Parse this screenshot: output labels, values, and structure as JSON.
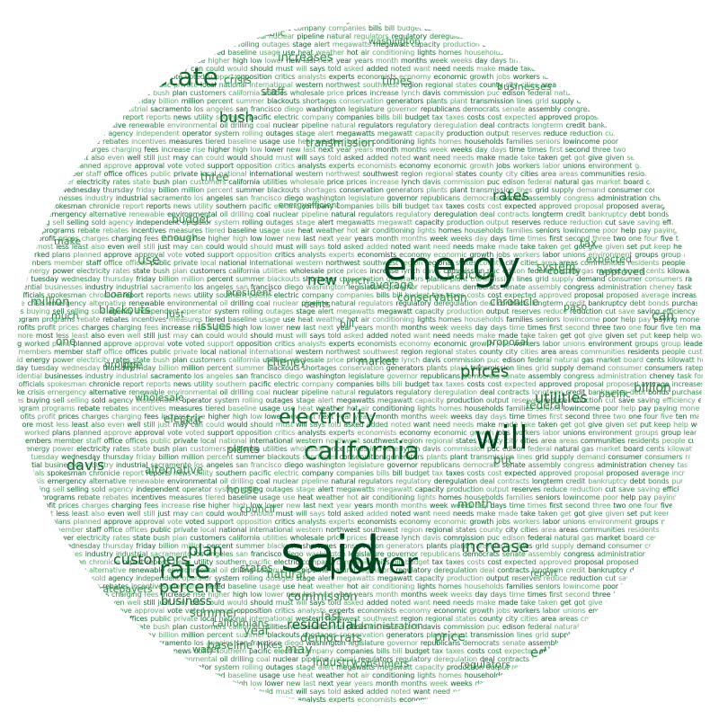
{
  "colors": {
    "dark": "#00461f",
    "mid": "#0f6a2b",
    "light": "#2f8b45",
    "pale": "#5ea96a"
  },
  "cloud": {
    "featured": [
      {
        "name": "word-said",
        "text": "said"
      },
      {
        "name": "word-energy",
        "text": "energy"
      },
      {
        "name": "word-power",
        "text": "power"
      },
      {
        "name": "word-will",
        "text": "will"
      },
      {
        "name": "word-california",
        "text": "california"
      },
      {
        "name": "word-electricity",
        "text": "electricity"
      },
      {
        "name": "word-state",
        "text": "state"
      },
      {
        "name": "word-rate",
        "text": "rate"
      },
      {
        "name": "word-gas",
        "text": "gas"
      },
      {
        "name": "word-customers",
        "text": "customers"
      },
      {
        "name": "word-percent",
        "text": "percent"
      },
      {
        "name": "word-davis",
        "text": "davis"
      },
      {
        "name": "word-increase",
        "text": "increase"
      },
      {
        "name": "word-prices",
        "text": "prices"
      },
      {
        "name": "word-rates",
        "text": "rates"
      },
      {
        "name": "word-new",
        "text": "new"
      },
      {
        "name": "word-plan",
        "text": "plan"
      },
      {
        "name": "word-utilities",
        "text": "utilities"
      },
      {
        "name": "word-bush",
        "text": "bush"
      },
      {
        "name": "word-residential",
        "text": "residential"
      },
      {
        "name": "word-business",
        "text": "business"
      },
      {
        "name": "word-commission",
        "text": "commission"
      },
      {
        "name": "word-price",
        "text": "price"
      },
      {
        "name": "word-summer",
        "text": "summer"
      },
      {
        "name": "word-edison",
        "text": "edison"
      },
      {
        "name": "word-billion",
        "text": "billion"
      },
      {
        "name": "word-million",
        "text": "million"
      },
      {
        "name": "word-increases",
        "text": "increases"
      },
      {
        "name": "word-transmission",
        "text": "transmission"
      },
      {
        "name": "word-democrats",
        "text": "democrats"
      },
      {
        "name": "word-can",
        "text": "can"
      },
      {
        "name": "word-may",
        "text": "may"
      },
      {
        "name": "word-year",
        "text": "year"
      },
      {
        "name": "word-system",
        "text": "system"
      },
      {
        "name": "word-natural",
        "text": "natural"
      },
      {
        "name": "word-states",
        "text": "states"
      },
      {
        "name": "word-industry",
        "text": "industry"
      },
      {
        "name": "word-average",
        "text": "average"
      },
      {
        "name": "word-conservation",
        "text": "conservation"
      },
      {
        "name": "word-baseline",
        "text": "baseline"
      },
      {
        "name": "word-hikes",
        "text": "hikes"
      },
      {
        "name": "word-californians",
        "text": "californians"
      },
      {
        "name": "word-use",
        "text": "use"
      },
      {
        "name": "word-last",
        "text": "last"
      },
      {
        "name": "word-blackouts",
        "text": "blackouts"
      },
      {
        "name": "word-crisis",
        "text": "crisis"
      },
      {
        "name": "word-staff",
        "text": "staff"
      },
      {
        "name": "word-cheney",
        "text": "cheney"
      },
      {
        "name": "word-issues",
        "text": "issues"
      },
      {
        "name": "word-alternative",
        "text": "alternative"
      },
      {
        "name": "word-electric",
        "text": "electric"
      },
      {
        "name": "word-plants",
        "text": "plants"
      },
      {
        "name": "word-house",
        "text": "house"
      },
      {
        "name": "word-council",
        "text": "council"
      },
      {
        "name": "word-budget",
        "text": "budget"
      },
      {
        "name": "word-chronicle",
        "text": "chronicle"
      },
      {
        "name": "word-francisco",
        "text": "francisco"
      },
      {
        "name": "word-federal",
        "text": "federal"
      },
      {
        "name": "word-month",
        "text": "month"
      },
      {
        "name": "word-puc",
        "text": "puc"
      },
      {
        "name": "word-market",
        "text": "market"
      },
      {
        "name": "word-pge",
        "text": "pge"
      },
      {
        "name": "word-three",
        "text": "three"
      },
      {
        "name": "word-times",
        "text": "times"
      },
      {
        "name": "word-businesses",
        "text": "businesses"
      },
      {
        "name": "word-ratepayers",
        "text": "ratepayers"
      },
      {
        "name": "word-consumers",
        "text": "consumers"
      },
      {
        "name": "word-public",
        "text": "public"
      },
      {
        "name": "word-washington",
        "text": "washington"
      },
      {
        "name": "word-tax",
        "text": "tax"
      },
      {
        "name": "word-one",
        "text": "one"
      },
      {
        "name": "word-make",
        "text": "make"
      },
      {
        "name": "word-water",
        "text": "water"
      },
      {
        "name": "word-president",
        "text": "president"
      },
      {
        "name": "word-board",
        "text": "board"
      },
      {
        "name": "word-two",
        "text": "two"
      },
      {
        "name": "word-much",
        "text": "much"
      },
      {
        "name": "word-just",
        "text": "just"
      },
      {
        "name": "word-paso",
        "text": "paso"
      },
      {
        "name": "word-pacific",
        "text": "pacific"
      },
      {
        "name": "word-proposal",
        "text": "proposal"
      },
      {
        "name": "word-groups",
        "text": "groups"
      },
      {
        "name": "word-wholesale",
        "text": "wholesale"
      },
      {
        "name": "word-lynch",
        "text": "lynch"
      },
      {
        "name": "word-county",
        "text": "county"
      },
      {
        "name": "word-expected",
        "text": "expected"
      },
      {
        "name": "word-approved",
        "text": "approved"
      },
      {
        "name": "word-cents",
        "text": "cents"
      },
      {
        "name": "word-administration",
        "text": "administration"
      },
      {
        "name": "word-enough",
        "text": "enough"
      },
      {
        "name": "word-local",
        "text": "local"
      },
      {
        "name": "word-bill",
        "text": "bill"
      },
      {
        "name": "word-report",
        "text": "report"
      },
      {
        "name": "word-regulators",
        "text": "regulators"
      },
      {
        "name": "word-energyefficient",
        "text": "energyefficient"
      }
    ],
    "background_words": [
      "said",
      "energy",
      "power",
      "electricity",
      "rates",
      "state",
      "bush",
      "plan",
      "customers",
      "california",
      "utilities",
      "wholesale",
      "price",
      "prices",
      "increase",
      "lynch",
      "davis",
      "commission",
      "puc",
      "edison",
      "federal",
      "natural",
      "gas",
      "market",
      "board",
      "cents",
      "kilowatt",
      "hour",
      "monday",
      "tuesday",
      "wednesday",
      "thursday",
      "friday",
      "billion",
      "million",
      "percent",
      "summer",
      "blackouts",
      "shortages",
      "conservation",
      "generators",
      "plants",
      "plant",
      "transmission",
      "lines",
      "grid",
      "supply",
      "demand",
      "consumer",
      "consumers",
      "ratepayers",
      "residential",
      "businesses",
      "industry",
      "industrial",
      "sacramento",
      "los",
      "angeles",
      "san",
      "francisco",
      "diego",
      "washington",
      "legislature",
      "governor",
      "republicans",
      "democrats",
      "senate",
      "assembly",
      "congress",
      "administration",
      "cheney",
      "task",
      "force",
      "policy",
      "officials",
      "spokesman",
      "chronicle",
      "report",
      "reports",
      "news",
      "utility",
      "southern",
      "pacific",
      "electric",
      "company",
      "companies",
      "bills",
      "bill",
      "budget",
      "tax",
      "taxes",
      "costs",
      "cost",
      "expected",
      "approved",
      "proposal",
      "proposed",
      "average",
      "increases",
      "hikes",
      "hike",
      "crisis",
      "emergency",
      "alternative",
      "renewable",
      "environmental",
      "oil",
      "drilling",
      "coal",
      "nuclear",
      "pipeline",
      "natural",
      "regulators",
      "regulatory",
      "deregulation",
      "deal",
      "contracts",
      "longterm",
      "credit",
      "bankruptcy",
      "debt",
      "bonds",
      "purchase",
      "purchases",
      "buying",
      "sell",
      "selling",
      "sold",
      "agency",
      "independent",
      "operator",
      "system",
      "rolling",
      "outages",
      "stage",
      "alert",
      "megawatts",
      "megawatt",
      "capacity",
      "production",
      "output",
      "reserves",
      "reduce",
      "reduction",
      "cut",
      "save",
      "saving",
      "efficiency",
      "efficient",
      "program",
      "programs",
      "rebate",
      "rebates",
      "incentives",
      "measures",
      "tiered",
      "baseline",
      "usage",
      "use",
      "heat",
      "weather",
      "hot",
      "air",
      "conditioning",
      "lights",
      "homes",
      "households",
      "families",
      "seniors",
      "lowincome",
      "poor",
      "help",
      "pay",
      "paying",
      "money",
      "dollars",
      "profits",
      "profit",
      "prices",
      "charges",
      "charging",
      "fees",
      "increase",
      "rise",
      "higher",
      "high",
      "low",
      "lower",
      "new",
      "last",
      "next",
      "year",
      "years",
      "month",
      "months",
      "week",
      "weeks",
      "day",
      "days",
      "time",
      "times",
      "first",
      "second",
      "three",
      "two",
      "one",
      "four",
      "five",
      "ten",
      "many",
      "much",
      "more",
      "most",
      "less",
      "least",
      "also",
      "even",
      "well",
      "still",
      "just",
      "may",
      "can",
      "could",
      "would",
      "should",
      "must",
      "will",
      "says",
      "told",
      "asked",
      "added",
      "noted",
      "want",
      "need",
      "needs",
      "make",
      "made",
      "take",
      "taken",
      "get",
      "got",
      "give",
      "given",
      "set",
      "put",
      "keep",
      "help",
      "work",
      "working",
      "worked",
      "plans",
      "planned",
      "approve",
      "approval",
      "vote",
      "voted",
      "support",
      "opposition",
      "critics",
      "analysts",
      "experts",
      "economists",
      "economy",
      "economic",
      "growth",
      "jobs",
      "workers",
      "labor",
      "unions",
      "environment",
      "groups",
      "group",
      "leaders",
      "leader",
      "members",
      "member",
      "staff",
      "office",
      "offices",
      "public",
      "private",
      "local",
      "national",
      "international",
      "western",
      "northwest",
      "southwest",
      "region",
      "regional",
      "states",
      "county",
      "city",
      "cities",
      "area",
      "areas",
      "communities",
      "residents",
      "people",
      "customers"
    ]
  }
}
